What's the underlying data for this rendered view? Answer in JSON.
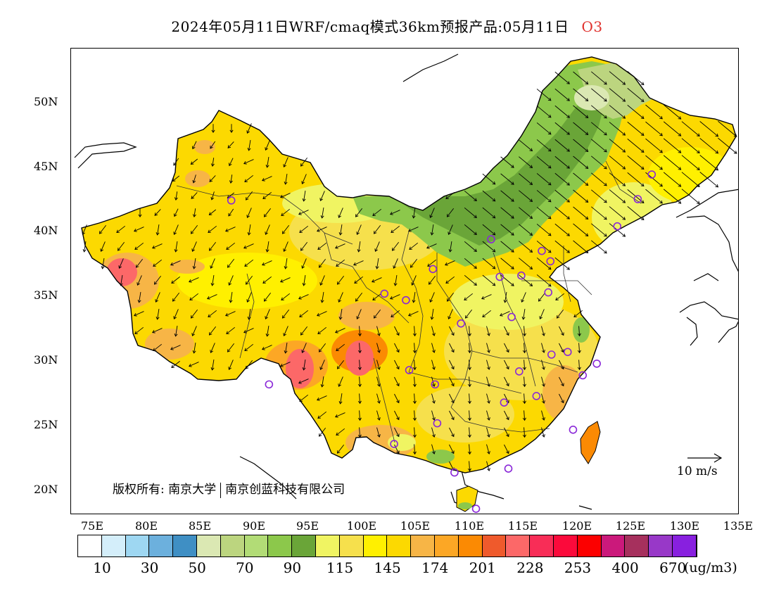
{
  "title": {
    "main": "2024年05月11日WRF/cmaq模式36km预报产品:05月11日",
    "species": "O3",
    "species_color": "#e0302c"
  },
  "map": {
    "lon_range": [
      73,
      135
    ],
    "lat_range": [
      18,
      54
    ],
    "lat_labels": [
      "50N",
      "45N",
      "40N",
      "35N",
      "30N",
      "25N",
      "20N"
    ],
    "lon_labels": [
      "75E",
      "80E",
      "85E",
      "90E",
      "95E",
      "100E",
      "105E",
      "110E",
      "115E",
      "120E",
      "125E",
      "130E",
      "135E"
    ],
    "reference_vector_label": "10 m/s",
    "copyright": {
      "label": "版权所有:",
      "org1": "南京大学",
      "org2": "南京创蓝科技有限公司"
    },
    "stations": [
      [
        87.6,
        43.8
      ],
      [
        91.1,
        29.6
      ],
      [
        101.8,
        36.6
      ],
      [
        103.8,
        36.1
      ],
      [
        106.3,
        38.5
      ],
      [
        104.1,
        30.7
      ],
      [
        106.5,
        29.6
      ],
      [
        102.7,
        25.0
      ],
      [
        106.7,
        26.6
      ],
      [
        108.3,
        22.8
      ],
      [
        110.3,
        20.0
      ],
      [
        113.3,
        23.1
      ],
      [
        112.9,
        28.2
      ],
      [
        114.3,
        30.6
      ],
      [
        115.9,
        28.7
      ],
      [
        117.3,
        31.9
      ],
      [
        118.8,
        32.1
      ],
      [
        120.2,
        30.3
      ],
      [
        121.5,
        31.2
      ],
      [
        119.3,
        26.1
      ],
      [
        113.6,
        34.8
      ],
      [
        117.0,
        36.7
      ],
      [
        112.5,
        37.9
      ],
      [
        114.5,
        38.0
      ],
      [
        116.4,
        39.9
      ],
      [
        117.2,
        39.1
      ],
      [
        111.7,
        40.8
      ],
      [
        123.4,
        41.8
      ],
      [
        125.3,
        43.9
      ],
      [
        126.6,
        45.8
      ],
      [
        108.9,
        34.3
      ]
    ]
  },
  "colorbar": {
    "colors": [
      "#ffffff",
      "#d4eefa",
      "#9ed7f2",
      "#6cb0dd",
      "#3f8fc4",
      "#dbe8b3",
      "#bcd57f",
      "#b2dc76",
      "#8cc84b",
      "#6aa538",
      "#f0f462",
      "#f6e04c",
      "#fff000",
      "#fcd901",
      "#f7b546",
      "#fca725",
      "#fb8a03",
      "#ef5a2c",
      "#fc6868",
      "#f82d57",
      "#fb0a3b",
      "#fc0000",
      "#cb197b",
      "#a6305d",
      "#9838c8",
      "#8820df"
    ],
    "labels": [
      "10",
      "30",
      "50",
      "70",
      "90",
      "115",
      "145",
      "174",
      "201",
      "228",
      "253",
      "400",
      "670"
    ],
    "unit": "(ug/m3)"
  },
  "legend_colors": {
    "green_dark": "#6aa538",
    "green_mid": "#8cc84b",
    "green_light": "#bcd57f",
    "yellow": "#fff000",
    "yellow_light": "#f0f462",
    "yellow_gold": "#fcd901",
    "orange_light": "#f7b546",
    "orange": "#fb8a03",
    "red_soft": "#fc6868",
    "station_purple": "#8a28d8"
  }
}
